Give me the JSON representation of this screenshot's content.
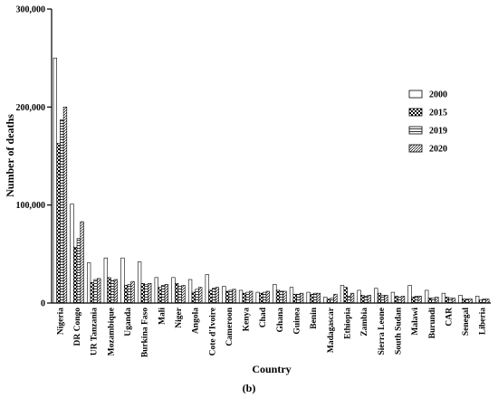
{
  "chart_data": {
    "type": "bar",
    "panel_label": "(b)",
    "xlabel": "Country",
    "ylabel": "Number of deaths",
    "ylim": [
      0,
      300000
    ],
    "yticks": [
      0,
      100000,
      200000,
      300000
    ],
    "ytick_labels": [
      "0",
      "100,000",
      "200,000",
      "300,000"
    ],
    "legend_position": "right",
    "grid": false,
    "categories": [
      "Nigeria",
      "DR Congo",
      "UR Tanzania",
      "Mozambique",
      "Uganda",
      "Burkina Faso",
      "Mali",
      "Niger",
      "Angola",
      "Cote d'Ivoire",
      "Cameroon",
      "Kenya",
      "Chad",
      "Ghana",
      "Guinea",
      "Benin",
      "Madagascar",
      "Ethiopia",
      "Zambia",
      "Sierra Leone",
      "South Sudan",
      "Malawi",
      "Burundi",
      "CAR",
      "Senegal",
      "Liberia"
    ],
    "series": [
      {
        "name": "2000",
        "pattern": "plain",
        "values": [
          250000,
          101000,
          41000,
          46000,
          46000,
          42000,
          26000,
          26000,
          24000,
          29000,
          17000,
          13000,
          11000,
          19000,
          16000,
          11000,
          6000,
          18000,
          13000,
          15000,
          11000,
          18000,
          13000,
          10000,
          8000,
          7000
        ]
      },
      {
        "name": "2015",
        "pattern": "checker",
        "values": [
          163000,
          57000,
          21000,
          26000,
          18000,
          20000,
          16000,
          20000,
          11000,
          13000,
          12000,
          10000,
          10000,
          13000,
          9000,
          9000,
          4000,
          16000,
          8000,
          10000,
          7000,
          6000,
          5000,
          6000,
          4000,
          3000
        ]
      },
      {
        "name": "2019",
        "pattern": "hstripe",
        "values": [
          187000,
          66000,
          24000,
          23000,
          19000,
          19000,
          18000,
          17000,
          14000,
          15000,
          13000,
          11000,
          11000,
          12000,
          9000,
          10000,
          5000,
          7000,
          7000,
          8000,
          6000,
          7000,
          5000,
          5000,
          4000,
          4000
        ]
      },
      {
        "name": "2020",
        "pattern": "diagonal",
        "values": [
          200000,
          83000,
          25000,
          24000,
          22000,
          20000,
          19000,
          18000,
          16000,
          16000,
          14000,
          12000,
          12000,
          12000,
          10000,
          10000,
          9000,
          10000,
          8000,
          8000,
          7000,
          7000,
          6000,
          5000,
          4000,
          4000
        ]
      }
    ]
  }
}
